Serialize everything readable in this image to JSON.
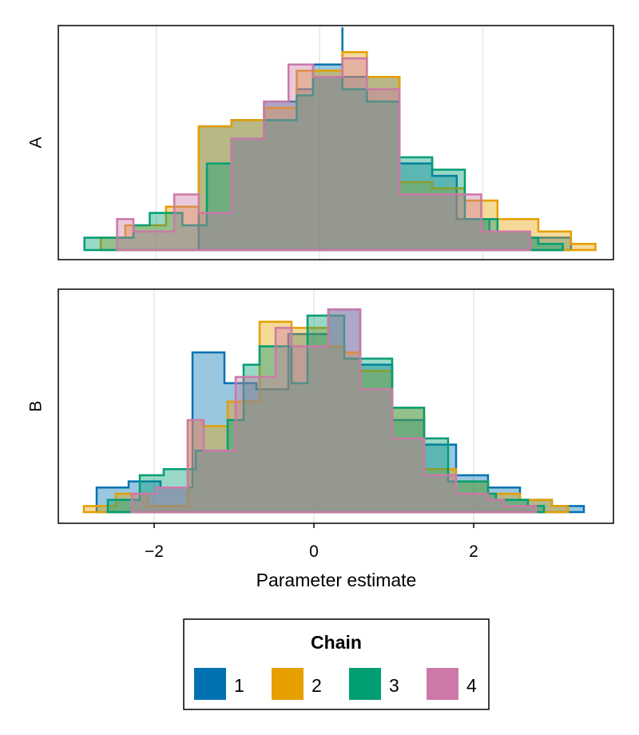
{
  "chart_data": [
    {
      "type": "histogram",
      "panel": "A",
      "ylabel": "A",
      "xlabel": "",
      "xlim": [
        -3.2,
        3.6
      ],
      "ylim": [
        0,
        35
      ],
      "grid_x": [
        -2,
        0,
        2
      ],
      "series": [
        {
          "name": "1",
          "bins": [
            [
              -1.48,
              20
            ],
            [
              -1.08,
              21
            ],
            [
              -0.68,
              24
            ],
            [
              -0.28,
              26
            ],
            [
              -0.08,
              30
            ],
            [
              0.28,
              36
            ],
            [
              0.28,
              28
            ],
            [
              0.98,
              14
            ],
            [
              1.38,
              13
            ],
            [
              1.38,
              12
            ],
            [
              1.68,
              7
            ],
            [
              1.68,
              5
            ],
            [
              2.08,
              3
            ],
            [
              2.58,
              2
            ],
            [
              3.08,
              0
            ]
          ]
        },
        {
          "name": "2",
          "bins": [
            [
              -2.68,
              2
            ],
            [
              -2.38,
              4
            ],
            [
              -1.88,
              7
            ],
            [
              -1.48,
              20
            ],
            [
              -1.08,
              21
            ],
            [
              -0.68,
              23
            ],
            [
              -0.28,
              29
            ],
            [
              0.28,
              32
            ],
            [
              0.58,
              28
            ],
            [
              0.98,
              11
            ],
            [
              1.38,
              10
            ],
            [
              1.78,
              8
            ],
            [
              2.18,
              5
            ],
            [
              2.68,
              3
            ],
            [
              3.08,
              1
            ],
            [
              3.38,
              0
            ]
          ]
        },
        {
          "name": "3",
          "bins": [
            [
              -2.88,
              2
            ],
            [
              -2.28,
              4
            ],
            [
              -2.08,
              6
            ],
            [
              -1.68,
              4
            ],
            [
              -1.38,
              14
            ],
            [
              -1.08,
              18
            ],
            [
              -0.68,
              21
            ],
            [
              -0.28,
              25
            ],
            [
              -0.08,
              28
            ],
            [
              0.28,
              26
            ],
            [
              0.58,
              24
            ],
            [
              0.98,
              15
            ],
            [
              1.38,
              13
            ],
            [
              1.78,
              5
            ],
            [
              2.18,
              3
            ],
            [
              2.58,
              2
            ],
            [
              2.68,
              1
            ],
            [
              2.98,
              0
            ]
          ]
        },
        {
          "name": "4",
          "bins": [
            [
              -2.48,
              5
            ],
            [
              -2.28,
              3
            ],
            [
              -1.78,
              9
            ],
            [
              -1.48,
              6
            ],
            [
              -1.08,
              18
            ],
            [
              -0.68,
              24
            ],
            [
              -0.38,
              30
            ],
            [
              -0.08,
              28
            ],
            [
              0.28,
              31
            ],
            [
              0.58,
              26
            ],
            [
              0.98,
              9
            ],
            [
              1.38,
              9
            ],
            [
              1.98,
              3
            ],
            [
              2.58,
              2
            ],
            [
              2.58,
              0
            ]
          ]
        }
      ]
    },
    {
      "type": "histogram",
      "panel": "B",
      "ylabel": "B",
      "xlabel": "Parameter estimate",
      "xlim": [
        -3.2,
        3.75
      ],
      "ylim": [
        0,
        35
      ],
      "grid_x": [
        -2,
        0,
        2
      ],
      "series": [
        {
          "name": "1",
          "bins": [
            [
              -2.72,
              4
            ],
            [
              -2.32,
              5
            ],
            [
              -1.92,
              4
            ],
            [
              -1.52,
              26
            ],
            [
              -1.12,
              21
            ],
            [
              -0.72,
              20
            ],
            [
              -0.32,
              29
            ],
            [
              0.18,
              33
            ],
            [
              0.58,
              24
            ],
            [
              0.98,
              15
            ],
            [
              1.38,
              11
            ],
            [
              1.78,
              6
            ],
            [
              2.18,
              4
            ],
            [
              2.58,
              2
            ],
            [
              2.98,
              1
            ],
            [
              3.38,
              0
            ]
          ]
        },
        {
          "name": "2",
          "bins": [
            [
              -2.88,
              1
            ],
            [
              -2.48,
              3
            ],
            [
              -2.08,
              1
            ],
            [
              -1.58,
              15
            ],
            [
              -1.38,
              14
            ],
            [
              -1.08,
              18
            ],
            [
              -0.68,
              31
            ],
            [
              -0.28,
              30
            ],
            [
              0.18,
              27
            ],
            [
              0.38,
              26
            ],
            [
              0.58,
              23
            ],
            [
              0.98,
              17
            ],
            [
              1.38,
              7
            ],
            [
              1.78,
              5
            ],
            [
              2.18,
              3
            ],
            [
              2.58,
              2
            ],
            [
              2.98,
              1
            ],
            [
              3.18,
              0
            ]
          ]
        },
        {
          "name": "3",
          "bins": [
            [
              -2.58,
              2
            ],
            [
              -2.18,
              6
            ],
            [
              -1.88,
              7
            ],
            [
              -1.48,
              10
            ],
            [
              -1.08,
              15
            ],
            [
              -0.88,
              24
            ],
            [
              -0.68,
              27
            ],
            [
              -0.28,
              21
            ],
            [
              -0.08,
              32
            ],
            [
              0.38,
              25
            ],
            [
              0.98,
              17
            ],
            [
              1.38,
              12
            ],
            [
              1.68,
              5
            ],
            [
              2.18,
              3
            ],
            [
              2.28,
              2
            ],
            [
              2.68,
              1
            ],
            [
              2.88,
              0
            ]
          ]
        },
        {
          "name": "4",
          "bins": [
            [
              -2.28,
              3
            ],
            [
              -1.98,
              4
            ],
            [
              -1.58,
              15
            ],
            [
              -1.38,
              10
            ],
            [
              -0.98,
              22
            ],
            [
              -0.48,
              30
            ],
            [
              -0.28,
              27
            ],
            [
              0.18,
              33
            ],
            [
              0.58,
              20
            ],
            [
              0.98,
              12
            ],
            [
              1.38,
              6
            ],
            [
              1.78,
              3
            ],
            [
              2.18,
              2
            ],
            [
              2.38,
              1
            ],
            [
              2.78,
              0
            ]
          ]
        }
      ]
    }
  ],
  "axis": {
    "x_ticks": [
      {
        "value": -2,
        "label": "−2"
      },
      {
        "value": 0,
        "label": "0"
      },
      {
        "value": 2,
        "label": "2"
      }
    ],
    "xlabel": "Parameter estimate"
  },
  "legend": {
    "title": "Chain",
    "placement": "bottom-center",
    "items": [
      {
        "label": "1",
        "color": "#0072B2"
      },
      {
        "label": "2",
        "color": "#E69F00"
      },
      {
        "label": "3",
        "color": "#009E73"
      },
      {
        "label": "4",
        "color": "#CC79A7"
      }
    ]
  },
  "colors": {
    "1": "#0072B2",
    "2": "#E69F00",
    "3": "#009E73",
    "4": "#CC79A7",
    "grid": "#e6e6e6",
    "frame": "#000000"
  }
}
